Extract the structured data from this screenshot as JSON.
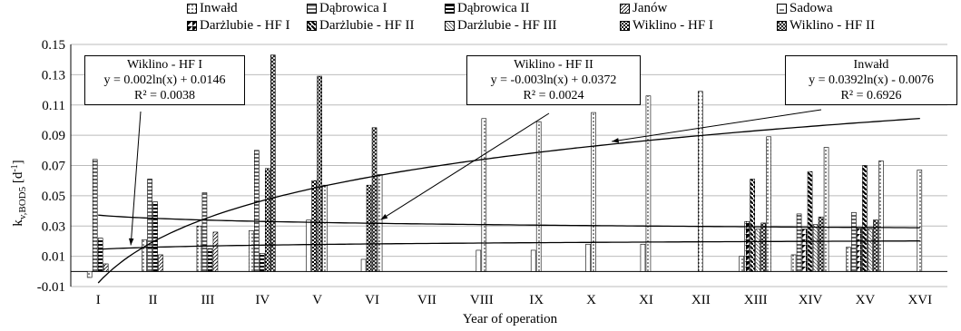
{
  "chart_data": {
    "type": "bar",
    "xlabel": "Year of operation",
    "ylabel": "k",
    "ylabel_sub": "v,BOD5",
    "ylabel_unit_pre": " [d",
    "ylabel_unit_sup": "-1",
    "ylabel_unit_post": "]",
    "ylim": [
      -0.01,
      0.15
    ],
    "yticks": [
      "-0.01",
      "0.01",
      "0.03",
      "0.05",
      "0.07",
      "0.09",
      "0.11",
      "0.13",
      "0.15"
    ],
    "ytick_values": [
      -0.01,
      0.01,
      0.03,
      0.05,
      0.07,
      0.09,
      0.11,
      0.13,
      0.15
    ],
    "grid": "horizontal",
    "legend_position": "top",
    "categories": [
      "I",
      "II",
      "III",
      "IV",
      "V",
      "VI",
      "VII",
      "VIII",
      "IX",
      "X",
      "XI",
      "XII",
      "XIII",
      "XIV",
      "XV",
      "XVI"
    ],
    "series": [
      {
        "name": "Inwałd",
        "pattern": "dots",
        "values": [
          -0.004,
          0.021,
          0.03,
          0.027,
          null,
          null,
          null,
          null,
          null,
          null,
          null,
          null,
          0.01,
          0.011,
          0.016,
          null
        ]
      },
      {
        "name": "Dąbrowica I",
        "pattern": "hlines",
        "values": [
          0.074,
          0.061,
          0.052,
          0.08,
          null,
          null,
          null,
          null,
          null,
          null,
          null,
          null,
          null,
          0.038,
          0.039,
          null
        ]
      },
      {
        "name": "Dąbrowica II",
        "pattern": "hlines-thick",
        "values": [
          0.022,
          0.046,
          0.015,
          0.012,
          null,
          null,
          null,
          null,
          null,
          null,
          null,
          null,
          null,
          null,
          null,
          null
        ]
      },
      {
        "name": "Janów",
        "pattern": "diag-fine",
        "values": [
          0.005,
          0.011,
          0.026,
          null,
          null,
          null,
          null,
          null,
          null,
          null,
          null,
          null,
          null,
          null,
          null,
          null
        ]
      },
      {
        "name": "Sadowa",
        "pattern": "plain",
        "values": [
          null,
          null,
          null,
          null,
          0.034,
          0.008,
          null,
          0.014,
          0.014,
          0.018,
          0.018,
          null,
          null,
          null,
          null,
          null
        ]
      },
      {
        "name": "Darżlubie - HF I",
        "pattern": "half",
        "values": [
          null,
          null,
          null,
          null,
          null,
          null,
          null,
          null,
          null,
          null,
          null,
          null,
          0.033,
          0.028,
          0.029,
          null
        ]
      },
      {
        "name": "Darżlubie - HF II",
        "pattern": "diag-thick",
        "values": [
          null,
          null,
          null,
          null,
          null,
          null,
          null,
          null,
          null,
          null,
          null,
          null,
          0.061,
          0.066,
          0.07,
          null
        ]
      },
      {
        "name": "Darżlubie - HF III",
        "pattern": "diag-light",
        "values": [
          null,
          null,
          null,
          null,
          null,
          null,
          null,
          null,
          null,
          null,
          null,
          null,
          0.028,
          0.031,
          0.028,
          null
        ]
      },
      {
        "name": "Wiklino - HF I",
        "pattern": "check-dark",
        "values": [
          null,
          null,
          null,
          0.068,
          0.06,
          0.057,
          null,
          null,
          null,
          null,
          null,
          null,
          null,
          null,
          null,
          null
        ]
      },
      {
        "name": "Wiklino - HF II",
        "pattern": "check-light",
        "values": [
          null,
          null,
          null,
          0.143,
          0.129,
          0.095,
          null,
          null,
          null,
          null,
          null,
          null,
          0.032,
          0.036,
          0.034,
          null
        ]
      },
      {
        "name": "Inwałd_trend_bars",
        "pattern": "dots",
        "values": [
          null,
          null,
          null,
          null,
          0.057,
          0.064,
          null,
          0.101,
          0.099,
          0.105,
          0.116,
          0.119,
          0.089,
          0.082,
          0.073,
          0.067
        ]
      }
    ],
    "trendlines": [
      {
        "name": "Wiklino - HF I",
        "a": 0.002,
        "b": 0.0146
      },
      {
        "name": "Wiklino - HF II",
        "a": -0.003,
        "b": 0.0372
      },
      {
        "name": "Inwałd",
        "a": 0.0392,
        "b": -0.0076
      }
    ]
  },
  "legend": {
    "row1": [
      "Inwałd",
      "Dąbrowica I",
      "Dąbrowica II",
      "Janów",
      "Sadowa"
    ],
    "row2": [
      "Darżlubie - HF I",
      "Darżlubie - HF II",
      "Darżlubie - HF III",
      "Wiklino - HF I",
      "Wiklino - HF II"
    ]
  },
  "annotations": {
    "a1": {
      "title": "Wiklino - HF I",
      "eq": "y = 0.002ln(x) + 0.0146",
      "r2": "R² = 0.0038"
    },
    "a2": {
      "title": "Wiklino - HF II",
      "eq": "y = -0.003ln(x) + 0.0372",
      "r2": "R² = 0.0024"
    },
    "a3": {
      "title": "Inwałd",
      "eq": "y = 0.0392ln(x) - 0.0076",
      "r2": "R² = 0.6926"
    }
  }
}
